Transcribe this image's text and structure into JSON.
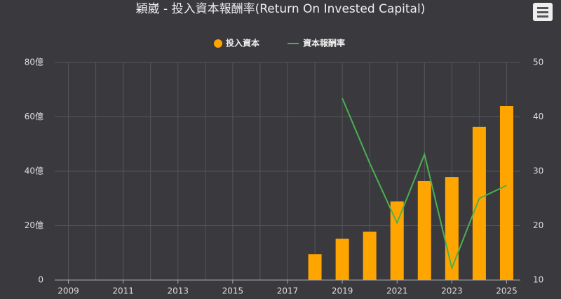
{
  "chart_data": {
    "type": "bar-line",
    "title": "穎崴 - 投入資本報酬率(Return On Invested Capital)",
    "categories": [
      "2009",
      null,
      "2011",
      null,
      "2013",
      null,
      "2015",
      null,
      "2017",
      null,
      "2019",
      null,
      "2021",
      null,
      "2023",
      null,
      "2025"
    ],
    "series": [
      {
        "name": "投入資本",
        "type": "bar",
        "color": "#ffa500",
        "values": [
          null,
          null,
          null,
          null,
          null,
          null,
          null,
          null,
          null,
          9.5,
          15.2,
          17.8,
          28.9,
          36.4,
          37.9,
          56.3,
          64.0
        ]
      },
      {
        "name": "資本報酬率",
        "type": "line",
        "axis": "y2",
        "color": "#4caf50",
        "values": [
          null,
          null,
          null,
          null,
          null,
          null,
          null,
          null,
          null,
          null,
          43.4,
          31.5,
          20.5,
          33.1,
          12.2,
          25.0,
          27.4
        ]
      }
    ],
    "ylim": [
      0,
      80
    ],
    "yticks": [
      0,
      {
        "value": 20,
        "label": "20億"
      },
      {
        "value": 40,
        "label": "40億"
      },
      {
        "value": 60,
        "label": "60億"
      },
      {
        "value": 80,
        "label": "80億"
      }
    ],
    "y2lim": [
      10,
      50
    ],
    "y2ticks": [
      10,
      20,
      30,
      40,
      50
    ],
    "grid": true
  }
}
